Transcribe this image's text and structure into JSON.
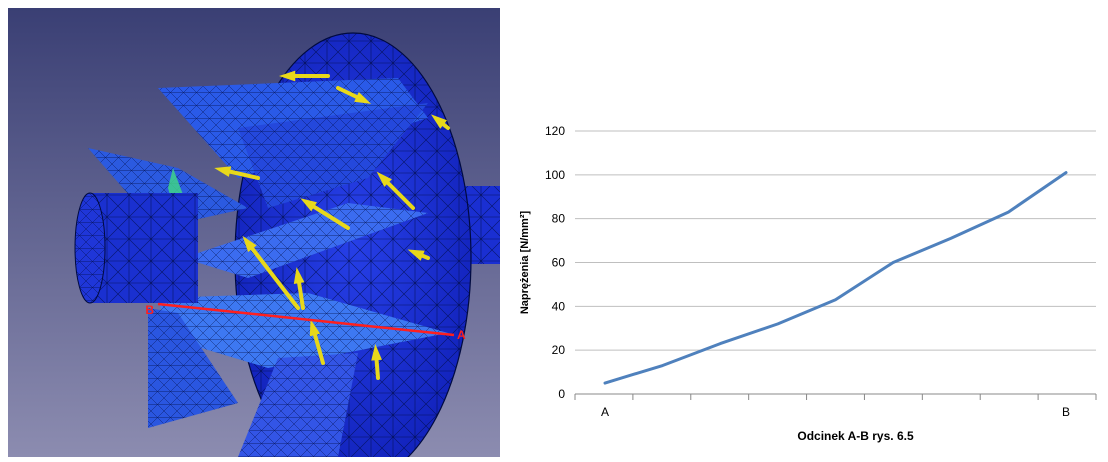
{
  "render": {
    "label_a": "A",
    "label_b": "B",
    "colors": {
      "background_top": "#3a3f74",
      "background_bottom": "#8c8cb0",
      "mesh_fill": "#1428c8",
      "mesh_light": "#3b6cf0",
      "mesh_lines": "#000a40",
      "highlight_green": "#3ed38a",
      "arrow": "#e8d81a",
      "section_line": "#ff1f1f"
    }
  },
  "chart_data": {
    "type": "line",
    "categories": [
      "A",
      "",
      "",
      "",
      "",
      "",
      "",
      "",
      "B"
    ],
    "series": [
      {
        "values": [
          5,
          13,
          23,
          32,
          43,
          60,
          71,
          83,
          101
        ]
      }
    ],
    "ylabel": "Naprężenia [N/mm²]",
    "xlabel": "Odcinek A-B rys. 6.5",
    "ylim": [
      0,
      120
    ],
    "yticks": [
      0,
      20,
      40,
      60,
      80,
      100,
      120
    ],
    "grid": true,
    "line_color": "#4f81bd"
  }
}
